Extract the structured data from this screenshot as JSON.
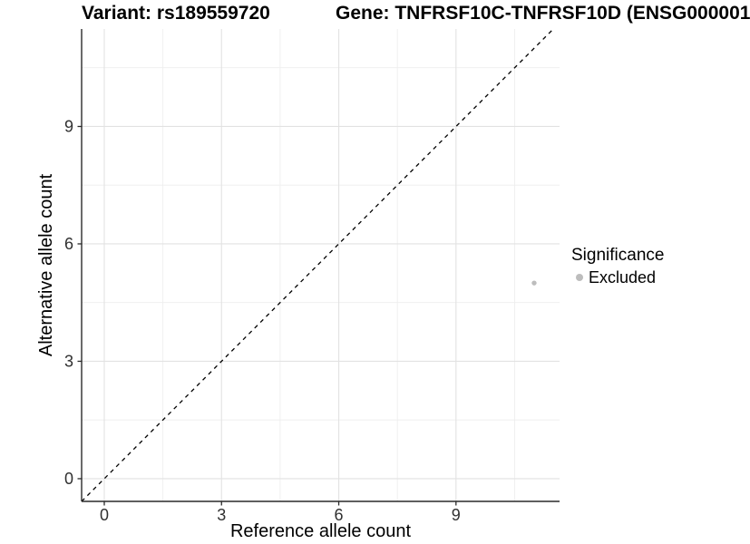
{
  "chart_data": {
    "type": "scatter",
    "title_left": "Variant: rs189559720",
    "title_right": "Gene: TNFRSF10C-TNFRSF10D (ENSG000001",
    "xlabel": "Reference allele count",
    "ylabel": "Alternative allele count",
    "xlim": [
      -0.58,
      11.65
    ],
    "ylim": [
      -0.58,
      11.49
    ],
    "xticks": [
      0,
      3,
      6,
      9
    ],
    "yticks": [
      0,
      3,
      6,
      9
    ],
    "xminor": [
      1.5,
      4.5,
      7.5,
      10.5
    ],
    "yminor": [
      1.5,
      4.5,
      7.5,
      10.5
    ],
    "grid": "major+minor",
    "identity_line": {
      "style": "dashed",
      "equation": "y = x",
      "from": -0.58,
      "to": 11.48,
      "color": "#000000"
    },
    "series": [
      {
        "name": "Excluded",
        "color": "#bdbdbd",
        "points": [
          {
            "x": 11,
            "y": 5
          }
        ]
      }
    ],
    "legend": {
      "title": "Significance",
      "position": "right",
      "entries": [
        "Excluded"
      ]
    },
    "colors": {
      "grid_major": "#e2e2e2",
      "grid_minor": "#eeeeee",
      "axis_line": "#2a2a2a",
      "tick_mark": "#2a2a2a",
      "tick_label": "#303030",
      "axis_title": "#000000",
      "point": "#bdbdbd"
    }
  }
}
